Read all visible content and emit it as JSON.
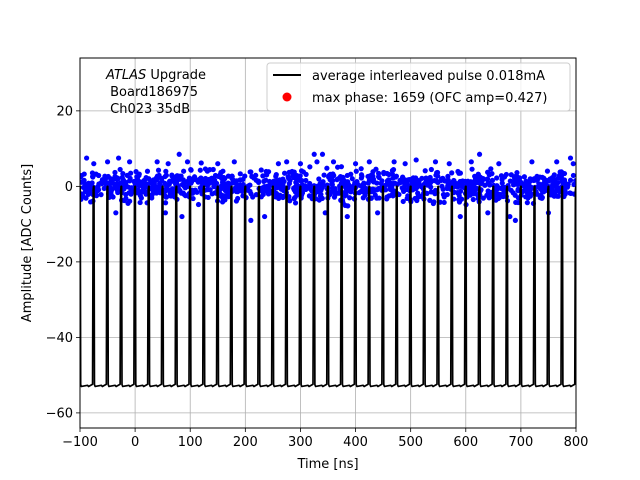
{
  "chart_data": {
    "type": "line",
    "xlabel": "Time [ns]",
    "ylabel": "Amplitude [ADC Counts]",
    "xlim": [
      -100,
      800
    ],
    "ylim": [
      -64,
      34
    ],
    "xticks": [
      "−100",
      "0",
      "100",
      "200",
      "300",
      "400",
      "500",
      "600",
      "700",
      "800"
    ],
    "xtick_values": [
      -100,
      0,
      100,
      200,
      300,
      400,
      500,
      600,
      700,
      800
    ],
    "yticks": [
      "−60",
      "−40",
      "−20",
      "0",
      "20"
    ],
    "ytick_values": [
      -60,
      -40,
      -20,
      0,
      20
    ],
    "grid": true,
    "legend_position": "top-right",
    "annotation": {
      "italic": "ATLAS",
      "line1_rest": " Upgrade",
      "line2": " Board186975",
      "line3": " Ch023 35dB"
    },
    "series": [
      {
        "name": "average interleaved pulse 0.018mA",
        "style": "line",
        "color": "#000000",
        "pulse_period_ns": 25,
        "pulse_start_ns": -100,
        "baseline": 0,
        "low_level": -53
      },
      {
        "name": "max phase: 1659 (OFC amp=0.427)",
        "style": "scatter",
        "color": "#ff0000",
        "points": []
      },
      {
        "name": "",
        "style": "scatter",
        "color": "#0000ff",
        "band_range": [
          -6,
          6
        ],
        "outliers": [
          [
            -88,
            7.5
          ],
          [
            -75,
            6
          ],
          [
            -50,
            6.5
          ],
          [
            -30,
            7.5
          ],
          [
            -35,
            -7
          ],
          [
            -10,
            6.5
          ],
          [
            40,
            6.5
          ],
          [
            55,
            -7
          ],
          [
            60,
            6
          ],
          [
            80,
            8.5
          ],
          [
            85,
            -8
          ],
          [
            95,
            6.5
          ],
          [
            120,
            6.2
          ],
          [
            150,
            6
          ],
          [
            180,
            6.5
          ],
          [
            210,
            -9
          ],
          [
            235,
            -8
          ],
          [
            260,
            6
          ],
          [
            275,
            6.5
          ],
          [
            300,
            6
          ],
          [
            325,
            8.5
          ],
          [
            330,
            6.5
          ],
          [
            340,
            8.5
          ],
          [
            345,
            -7
          ],
          [
            360,
            6.5
          ],
          [
            385,
            -8
          ],
          [
            400,
            6
          ],
          [
            425,
            6.5
          ],
          [
            440,
            -7
          ],
          [
            470,
            6.5
          ],
          [
            490,
            6
          ],
          [
            510,
            7
          ],
          [
            545,
            6.5
          ],
          [
            570,
            6
          ],
          [
            590,
            -8
          ],
          [
            610,
            6.5
          ],
          [
            625,
            8.5
          ],
          [
            640,
            -7
          ],
          [
            660,
            6
          ],
          [
            680,
            -8
          ],
          [
            690,
            -9
          ],
          [
            720,
            6.5
          ],
          [
            750,
            -7
          ],
          [
            765,
            6.5
          ],
          [
            790,
            7.5
          ],
          [
            795,
            6
          ]
        ]
      }
    ]
  }
}
